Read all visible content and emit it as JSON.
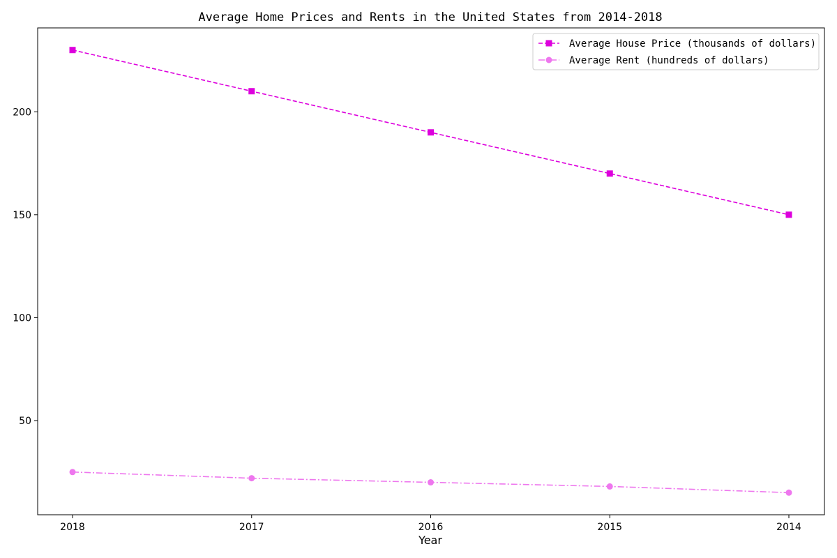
{
  "chart_data": {
    "type": "line",
    "title": "Average Home Prices and Rents in the United States from 2014-2018",
    "xlabel": "Year",
    "ylabel": "",
    "categories": [
      "2018",
      "2017",
      "2016",
      "2015",
      "2014"
    ],
    "yticks": [
      50,
      100,
      150,
      200
    ],
    "ylim": [
      4.25,
      240.75
    ],
    "grid": false,
    "legend_position": "top-right",
    "series": [
      {
        "name": "Average House Price (thousands of dollars)",
        "values": [
          230,
          210,
          190,
          170,
          150
        ],
        "color": "#dd00dd",
        "linestyle": "dashed",
        "marker": "square"
      },
      {
        "name": "Average Rent (hundreds of dollars)",
        "values": [
          25,
          22,
          20,
          18,
          15
        ],
        "color": "#ee77ee",
        "linestyle": "dashdot",
        "marker": "circle"
      }
    ]
  }
}
